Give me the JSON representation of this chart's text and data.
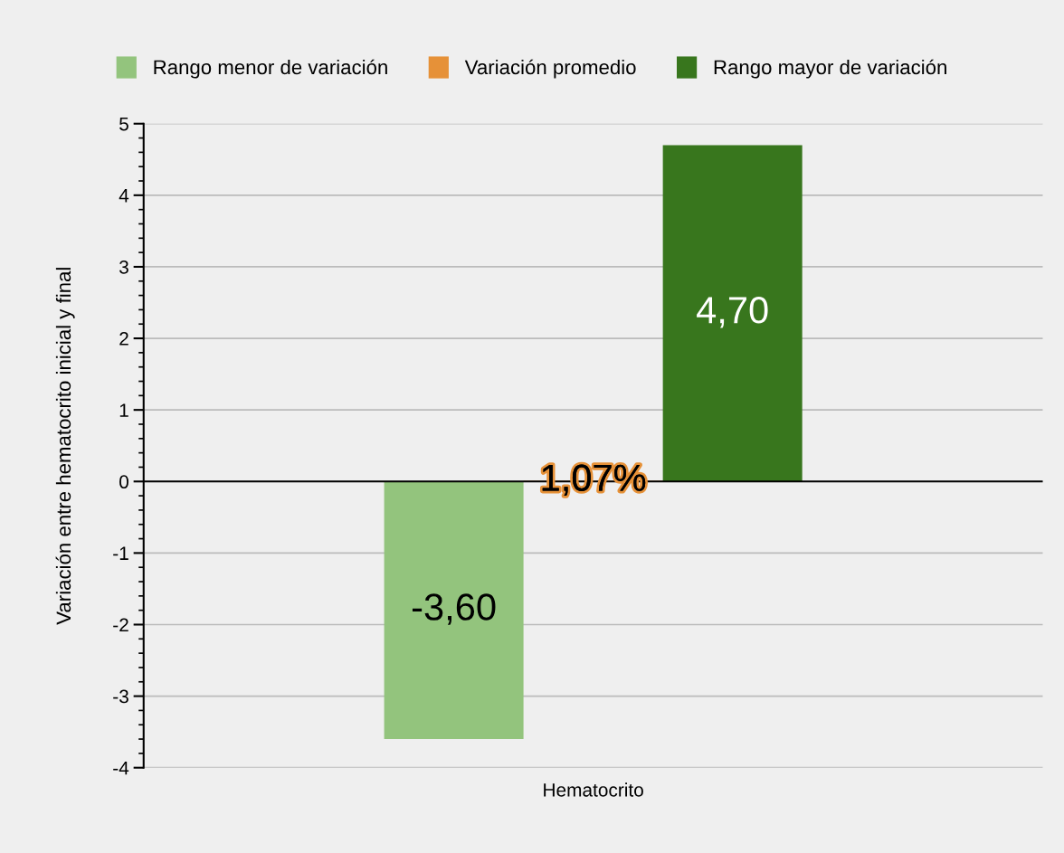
{
  "chart_data": {
    "type": "bar",
    "ylabel": "Variación entre hematocrito inicial y final",
    "categories": [
      "Hematocrito"
    ],
    "series": [
      {
        "name": "Rango menor de variación",
        "color": "#93c47d",
        "values": [
          -3.6
        ],
        "value_labels": [
          "-3,60"
        ]
      },
      {
        "name": "Variación promedio",
        "color": "#e69138",
        "values": [
          0.0107
        ],
        "value_labels": [
          "1,07%"
        ]
      },
      {
        "name": "Rango mayor de variación",
        "color": "#38761d",
        "values": [
          4.7
        ],
        "value_labels": [
          "4,70"
        ]
      }
    ],
    "ylim": [
      -4,
      5
    ],
    "yticks": [
      -4,
      -3,
      -2,
      -1,
      0,
      1,
      2,
      3,
      4,
      5
    ],
    "grid": "y",
    "legend": "top"
  }
}
